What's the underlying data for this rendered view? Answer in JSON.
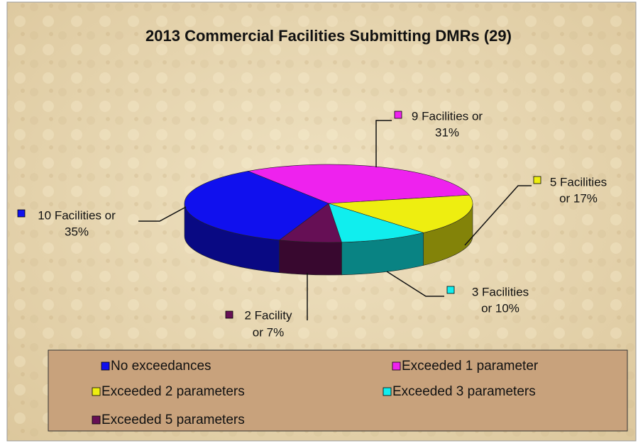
{
  "chart_data": {
    "type": "pie3d",
    "title": "2013 Commercial Facilities Submitting DMRs (29)",
    "categories": [
      "No exceedances",
      "Exceeded 1 parameter",
      "Exceeded 2 parameters",
      "Exceeded 3 parameters",
      "Exceeded 5 parameters"
    ],
    "values": [
      35,
      31,
      17,
      10,
      7
    ],
    "value_labels": [
      [
        "10 Facilities or",
        "35%"
      ],
      [
        "9 Facilities or",
        "31%"
      ],
      [
        "5 Facilities",
        "or  17%"
      ],
      [
        "3 Facilities",
        "or 10%"
      ],
      [
        "2 Facility",
        "or 7%"
      ]
    ],
    "colors": [
      "#1010ee",
      "#ee22ee",
      "#eeee10",
      "#10eeee",
      "#660f55"
    ],
    "legend": "bottom"
  }
}
